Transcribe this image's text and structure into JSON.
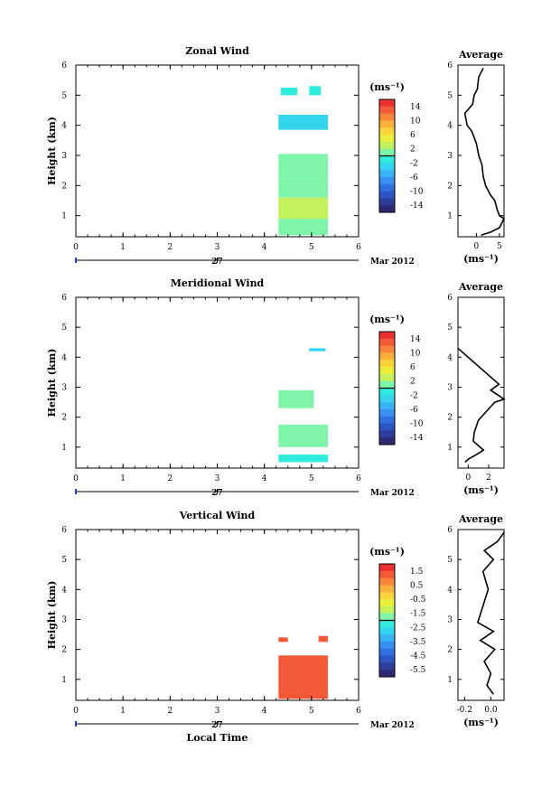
{
  "chart_data": [
    {
      "type": "heatmap",
      "title": "Zonal Wind",
      "ylabel": "Height (km)",
      "xlabel": "",
      "x_ticks": [
        "0",
        "1",
        "2",
        "3",
        "4",
        "5",
        "6"
      ],
      "y_ticks": [
        "1",
        "2",
        "3",
        "4",
        "5",
        "6"
      ],
      "xlim": [
        0,
        6
      ],
      "ylim": [
        0.3,
        6
      ],
      "date_tick": "27",
      "date_label": "Mar 2012",
      "colorbar": {
        "unit": "(ms⁻¹)",
        "labels": [
          "14",
          "10",
          "6",
          "2",
          "-2",
          "-6",
          "-10",
          "-14"
        ],
        "range": [
          -16,
          16
        ]
      },
      "cells": [
        {
          "x": [
            4.35,
            4.7
          ],
          "y": [
            5.0,
            5.25
          ],
          "v": -1
        },
        {
          "x": [
            4.95,
            5.2
          ],
          "y": [
            5.0,
            5.3
          ],
          "v": -1
        },
        {
          "x": [
            4.3,
            5.35
          ],
          "y": [
            3.85,
            4.35
          ],
          "v": -3
        },
        {
          "x": [
            4.3,
            5.35
          ],
          "y": [
            2.2,
            3.05
          ],
          "v": 0
        },
        {
          "x": [
            4.3,
            5.35
          ],
          "y": [
            1.6,
            2.2
          ],
          "v": 1
        },
        {
          "x": [
            4.3,
            5.35
          ],
          "y": [
            0.9,
            1.6
          ],
          "v": 2
        },
        {
          "x": [
            4.3,
            5.35
          ],
          "y": [
            0.35,
            0.9
          ],
          "v": 0
        }
      ],
      "profile": {
        "title": "Average",
        "unit": "(ms⁻¹)",
        "x_ticks": [
          "0",
          "5"
        ],
        "xlim": [
          -4,
          6
        ],
        "points": [
          [
            1.5,
            5.9
          ],
          [
            0.5,
            5.6
          ],
          [
            0.2,
            5.2
          ],
          [
            -0.5,
            5.0
          ],
          [
            -0.8,
            4.7
          ],
          [
            -2.5,
            4.4
          ],
          [
            -2.0,
            4.0
          ],
          [
            -1.0,
            3.8
          ],
          [
            0.0,
            3.4
          ],
          [
            0.5,
            3.0
          ],
          [
            1.2,
            2.7
          ],
          [
            1.5,
            2.3
          ],
          [
            2.0,
            2.0
          ],
          [
            3.0,
            1.7
          ],
          [
            4.0,
            1.5
          ],
          [
            4.5,
            1.2
          ],
          [
            5.0,
            1.0
          ],
          [
            6.0,
            0.9
          ],
          [
            5.0,
            0.6
          ],
          [
            3.0,
            0.45
          ],
          [
            1.0,
            0.35
          ]
        ]
      }
    },
    {
      "type": "heatmap",
      "title": "Meridional Wind",
      "ylabel": "Height (km)",
      "xlabel": "",
      "x_ticks": [
        "0",
        "1",
        "2",
        "3",
        "4",
        "5",
        "6"
      ],
      "y_ticks": [
        "1",
        "2",
        "3",
        "4",
        "5",
        "6"
      ],
      "xlim": [
        0,
        6
      ],
      "ylim": [
        0.3,
        6
      ],
      "date_tick": "27",
      "date_label": "Mar 2012",
      "colorbar": {
        "unit": "(ms⁻¹)",
        "labels": [
          "14",
          "10",
          "6",
          "2",
          "-2",
          "-6",
          "-10",
          "-14"
        ],
        "range": [
          -16,
          16
        ]
      },
      "cells": [
        {
          "x": [
            4.95,
            5.3
          ],
          "y": [
            4.2,
            4.3
          ],
          "v": -3
        },
        {
          "x": [
            4.3,
            5.05
          ],
          "y": [
            2.3,
            2.9
          ],
          "v": 1
        },
        {
          "x": [
            4.3,
            5.35
          ],
          "y": [
            1.0,
            1.75
          ],
          "v": 0
        },
        {
          "x": [
            4.3,
            5.35
          ],
          "y": [
            0.5,
            0.75
          ],
          "v": -1
        }
      ],
      "profile": {
        "title": "Average",
        "unit": "(ms⁻¹)",
        "x_ticks": [
          "0",
          "2"
        ],
        "xlim": [
          -1,
          3.5
        ],
        "points": [
          [
            -1.0,
            4.3
          ],
          [
            3.0,
            3.1
          ],
          [
            2.2,
            2.9
          ],
          [
            3.5,
            2.6
          ],
          [
            2.6,
            2.5
          ],
          [
            1.8,
            2.2
          ],
          [
            1.0,
            1.9
          ],
          [
            0.6,
            1.5
          ],
          [
            0.5,
            1.2
          ],
          [
            1.5,
            0.9
          ],
          [
            0.8,
            0.75
          ],
          [
            0.0,
            0.6
          ],
          [
            -0.3,
            0.5
          ]
        ]
      }
    },
    {
      "type": "heatmap",
      "title": "Vertical Wind",
      "ylabel": "Height (km)",
      "xlabel": "Local Time",
      "x_ticks": [
        "0",
        "1",
        "2",
        "3",
        "4",
        "5",
        "6"
      ],
      "y_ticks": [
        "1",
        "2",
        "3",
        "4",
        "5",
        "6"
      ],
      "xlim": [
        0,
        6
      ],
      "ylim": [
        0.3,
        6
      ],
      "date_tick": "27",
      "date_label": "Mar 2012",
      "colorbar": {
        "unit": "(ms⁻¹)",
        "labels": [
          "1.5",
          "0.5",
          "-0.5",
          "-1.5",
          "-2.5",
          "-3.5",
          "-4.5",
          "-5.5"
        ],
        "range": [
          -6,
          2
        ]
      },
      "cells": [
        {
          "x": [
            4.3,
            4.5
          ],
          "y": [
            2.25,
            2.4
          ],
          "v": 1.0
        },
        {
          "x": [
            5.15,
            5.35
          ],
          "y": [
            2.25,
            2.45
          ],
          "v": 1.0
        },
        {
          "x": [
            4.3,
            5.35
          ],
          "y": [
            0.35,
            1.8
          ],
          "v": 1.0
        }
      ],
      "profile": {
        "title": "Average",
        "unit": "(ms⁻¹)",
        "x_ticks": [
          "-0.2",
          "0.0"
        ],
        "xlim": [
          -0.25,
          0.1
        ],
        "points": [
          [
            0.1,
            5.9
          ],
          [
            0.05,
            5.6
          ],
          [
            -0.05,
            5.3
          ],
          [
            0.02,
            5.0
          ],
          [
            -0.06,
            4.6
          ],
          [
            -0.02,
            4.0
          ],
          [
            -0.1,
            2.9
          ],
          [
            0.02,
            2.6
          ],
          [
            -0.08,
            2.3
          ],
          [
            0.03,
            2.0
          ],
          [
            -0.05,
            1.6
          ],
          [
            0.0,
            1.2
          ],
          [
            -0.03,
            0.8
          ],
          [
            0.02,
            0.5
          ]
        ]
      }
    }
  ]
}
